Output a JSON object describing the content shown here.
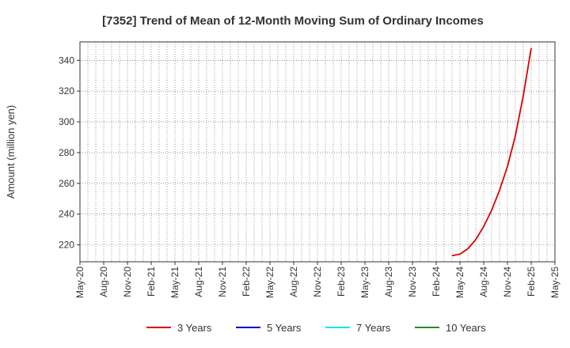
{
  "chart_data": {
    "type": "line",
    "title": "[7352]  Trend of Mean of 12-Month Moving Sum of Ordinary Incomes",
    "ylabel": "Amount (million yen)",
    "xlabel": "",
    "ylim": [
      209,
      352
    ],
    "y_ticks": [
      220,
      240,
      260,
      280,
      300,
      320,
      340
    ],
    "x_range": [
      "2020-05",
      "2025-05"
    ],
    "x_ticks": [
      "May-20",
      "Aug-20",
      "Nov-20",
      "Feb-21",
      "May-21",
      "Aug-21",
      "Nov-21",
      "Feb-22",
      "May-22",
      "Aug-22",
      "Nov-22",
      "Feb-23",
      "May-23",
      "Aug-23",
      "Nov-23",
      "Feb-24",
      "May-24",
      "Aug-24",
      "Nov-24",
      "Feb-25",
      "May-25"
    ],
    "grid": true,
    "legend_position": "bottom",
    "series": [
      {
        "name": "3 Years",
        "color": "#dd0000",
        "x": [
          "2024-04",
          "2024-05",
          "2024-06",
          "2024-07",
          "2024-08",
          "2024-09",
          "2024-10",
          "2024-11",
          "2024-12",
          "2025-01",
          "2025-02"
        ],
        "values": [
          213,
          214,
          217.5,
          223.5,
          232,
          242.5,
          255.5,
          271,
          291,
          317,
          348
        ]
      },
      {
        "name": "5 Years",
        "color": "#0000cc",
        "x": [],
        "values": []
      },
      {
        "name": "7 Years",
        "color": "#00e5ee",
        "x": [],
        "values": []
      },
      {
        "name": "10 Years",
        "color": "#228b22",
        "x": [],
        "values": []
      }
    ]
  }
}
